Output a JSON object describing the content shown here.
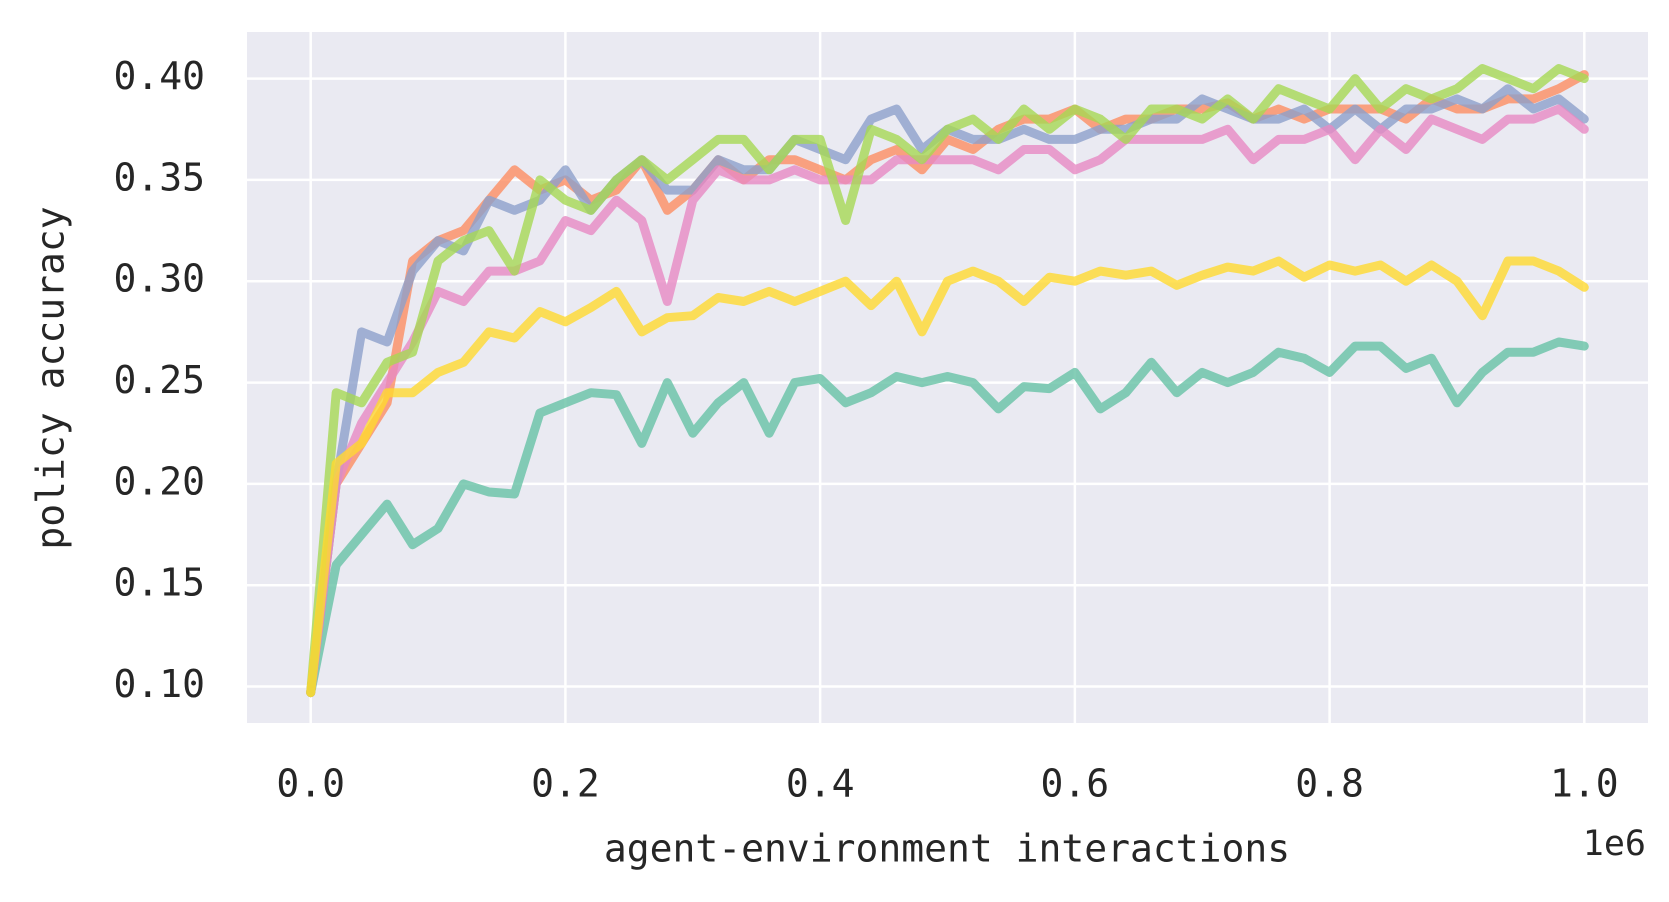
{
  "chart_data": {
    "type": "line",
    "x_label": "agent-environment interactions",
    "y_label": "policy accuracy",
    "x_offset_label": "1e6",
    "x": [
      0,
      0.02,
      0.04,
      0.06,
      0.08,
      0.1,
      0.12,
      0.14,
      0.16,
      0.18,
      0.2,
      0.22,
      0.24,
      0.26,
      0.28,
      0.3,
      0.32,
      0.34,
      0.36,
      0.38,
      0.4,
      0.42,
      0.44,
      0.46,
      0.48,
      0.5,
      0.52,
      0.54,
      0.56,
      0.58,
      0.6,
      0.62,
      0.64,
      0.66,
      0.68,
      0.7,
      0.72,
      0.74,
      0.76,
      0.78,
      0.8,
      0.82,
      0.84,
      0.86,
      0.88,
      0.9,
      0.92,
      0.94,
      0.96,
      0.98,
      1.0
    ],
    "series": [
      {
        "color": "#66c2a5",
        "values": [
          0.097,
          0.16,
          0.175,
          0.19,
          0.17,
          0.178,
          0.2,
          0.196,
          0.195,
          0.235,
          0.24,
          0.245,
          0.244,
          0.22,
          0.25,
          0.225,
          0.24,
          0.25,
          0.225,
          0.25,
          0.252,
          0.24,
          0.245,
          0.253,
          0.25,
          0.253,
          0.25,
          0.237,
          0.248,
          0.247,
          0.255,
          0.237,
          0.245,
          0.26,
          0.245,
          0.255,
          0.25,
          0.255,
          0.265,
          0.262,
          0.255,
          0.268,
          0.268,
          0.257,
          0.262,
          0.24,
          0.255,
          0.265,
          0.265,
          0.27,
          0.268
        ]
      },
      {
        "color": "#fc8d62",
        "values": [
          0.097,
          0.2,
          0.22,
          0.24,
          0.31,
          0.32,
          0.325,
          0.34,
          0.355,
          0.345,
          0.35,
          0.34,
          0.345,
          0.36,
          0.335,
          0.345,
          0.36,
          0.35,
          0.36,
          0.36,
          0.355,
          0.35,
          0.36,
          0.365,
          0.355,
          0.37,
          0.365,
          0.375,
          0.38,
          0.38,
          0.385,
          0.375,
          0.38,
          0.38,
          0.385,
          0.385,
          0.388,
          0.38,
          0.385,
          0.38,
          0.385,
          0.385,
          0.385,
          0.38,
          0.39,
          0.385,
          0.385,
          0.39,
          0.39,
          0.395,
          0.402
        ]
      },
      {
        "color": "#8da0cb",
        "values": [
          0.097,
          0.2,
          0.275,
          0.27,
          0.305,
          0.32,
          0.315,
          0.34,
          0.335,
          0.34,
          0.355,
          0.335,
          0.35,
          0.36,
          0.345,
          0.345,
          0.36,
          0.355,
          0.355,
          0.37,
          0.365,
          0.36,
          0.38,
          0.385,
          0.365,
          0.375,
          0.37,
          0.37,
          0.375,
          0.37,
          0.37,
          0.375,
          0.375,
          0.38,
          0.38,
          0.39,
          0.385,
          0.38,
          0.38,
          0.385,
          0.375,
          0.385,
          0.375,
          0.385,
          0.385,
          0.39,
          0.385,
          0.395,
          0.385,
          0.39,
          0.38
        ]
      },
      {
        "color": "#e78ac3",
        "values": [
          0.097,
          0.2,
          0.23,
          0.25,
          0.27,
          0.295,
          0.29,
          0.305,
          0.305,
          0.31,
          0.33,
          0.325,
          0.34,
          0.33,
          0.29,
          0.34,
          0.355,
          0.35,
          0.35,
          0.355,
          0.35,
          0.35,
          0.35,
          0.36,
          0.36,
          0.36,
          0.36,
          0.355,
          0.365,
          0.365,
          0.355,
          0.36,
          0.37,
          0.37,
          0.37,
          0.37,
          0.375,
          0.36,
          0.37,
          0.37,
          0.375,
          0.36,
          0.375,
          0.365,
          0.38,
          0.375,
          0.37,
          0.38,
          0.38,
          0.385,
          0.375
        ]
      },
      {
        "color": "#a6d854",
        "values": [
          0.097,
          0.245,
          0.24,
          0.26,
          0.265,
          0.31,
          0.32,
          0.325,
          0.305,
          0.35,
          0.34,
          0.335,
          0.35,
          0.36,
          0.35,
          0.36,
          0.37,
          0.37,
          0.355,
          0.37,
          0.37,
          0.33,
          0.375,
          0.37,
          0.36,
          0.375,
          0.38,
          0.37,
          0.385,
          0.375,
          0.385,
          0.38,
          0.37,
          0.385,
          0.385,
          0.38,
          0.39,
          0.38,
          0.395,
          0.39,
          0.385,
          0.4,
          0.385,
          0.395,
          0.39,
          0.395,
          0.405,
          0.4,
          0.395,
          0.405,
          0.4
        ]
      },
      {
        "color": "#ffd92f",
        "values": [
          0.097,
          0.21,
          0.22,
          0.245,
          0.245,
          0.255,
          0.26,
          0.275,
          0.272,
          0.285,
          0.28,
          0.287,
          0.295,
          0.275,
          0.282,
          0.283,
          0.292,
          0.29,
          0.295,
          0.29,
          0.295,
          0.3,
          0.288,
          0.3,
          0.275,
          0.3,
          0.305,
          0.3,
          0.29,
          0.302,
          0.3,
          0.305,
          0.303,
          0.305,
          0.298,
          0.303,
          0.307,
          0.305,
          0.31,
          0.302,
          0.308,
          0.305,
          0.308,
          0.3,
          0.308,
          0.3,
          0.283,
          0.31,
          0.31,
          0.305,
          0.297
        ]
      }
    ],
    "xlim": [
      -0.05,
      1.05
    ],
    "ylim": [
      0.082,
      0.423
    ],
    "xticks": [
      {
        "value": 0,
        "label": "0.0"
      },
      {
        "value": 0.2,
        "label": "0.2"
      },
      {
        "value": 0.4,
        "label": "0.4"
      },
      {
        "value": 0.6,
        "label": "0.6"
      },
      {
        "value": 0.8,
        "label": "0.8"
      },
      {
        "value": 1.0,
        "label": "1.0"
      }
    ],
    "yticks": [
      {
        "value": 0.1,
        "label": "0.10"
      },
      {
        "value": 0.15,
        "label": "0.15"
      },
      {
        "value": 0.2,
        "label": "0.20"
      },
      {
        "value": 0.25,
        "label": "0.25"
      },
      {
        "value": 0.3,
        "label": "0.30"
      },
      {
        "value": 0.35,
        "label": "0.35"
      },
      {
        "value": 0.4,
        "label": "0.40"
      }
    ],
    "grid": true,
    "line_opacity": 0.8
  }
}
